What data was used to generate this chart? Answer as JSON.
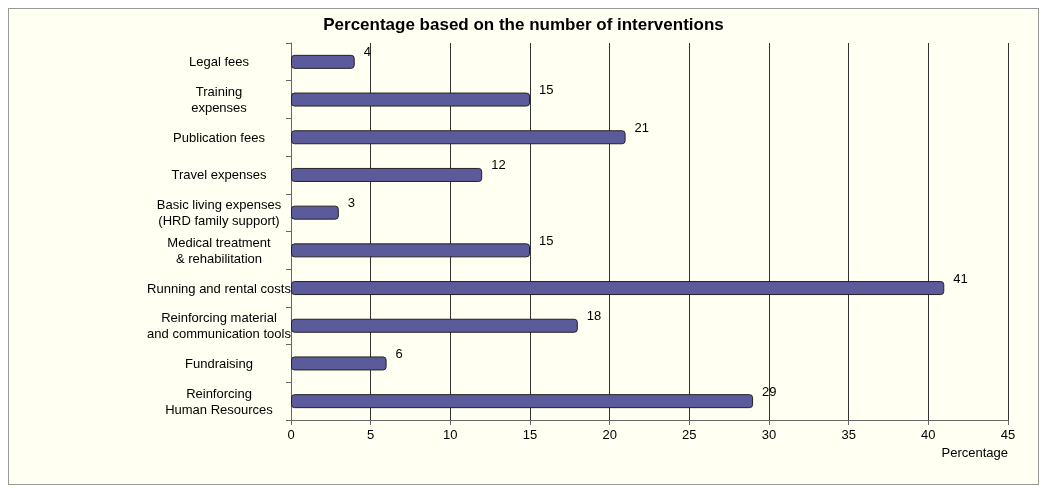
{
  "chart_data": {
    "type": "bar",
    "orientation": "horizontal",
    "title": "Percentage based on the number of interventions",
    "xlabel": "Percentage",
    "categories": [
      "Legal fees",
      "Training\nexpenses",
      "Publication fees",
      "Travel expenses",
      "Basic living expenses\n(HRD family support)",
      "Medical treatment\n& rehabilitation",
      "Running and rental costs",
      "Reinforcing material\nand communication tools",
      "Fundraising",
      "Reinforcing\nHuman Resources"
    ],
    "values": [
      4,
      15,
      21,
      12,
      3,
      15,
      41,
      18,
      6,
      29
    ],
    "color": "#5b5b9c",
    "xlim": [
      0,
      45
    ],
    "xticks": [
      0,
      5,
      10,
      15,
      20,
      25,
      30,
      35,
      40,
      45
    ],
    "grid": "x",
    "data_labels": true
  }
}
